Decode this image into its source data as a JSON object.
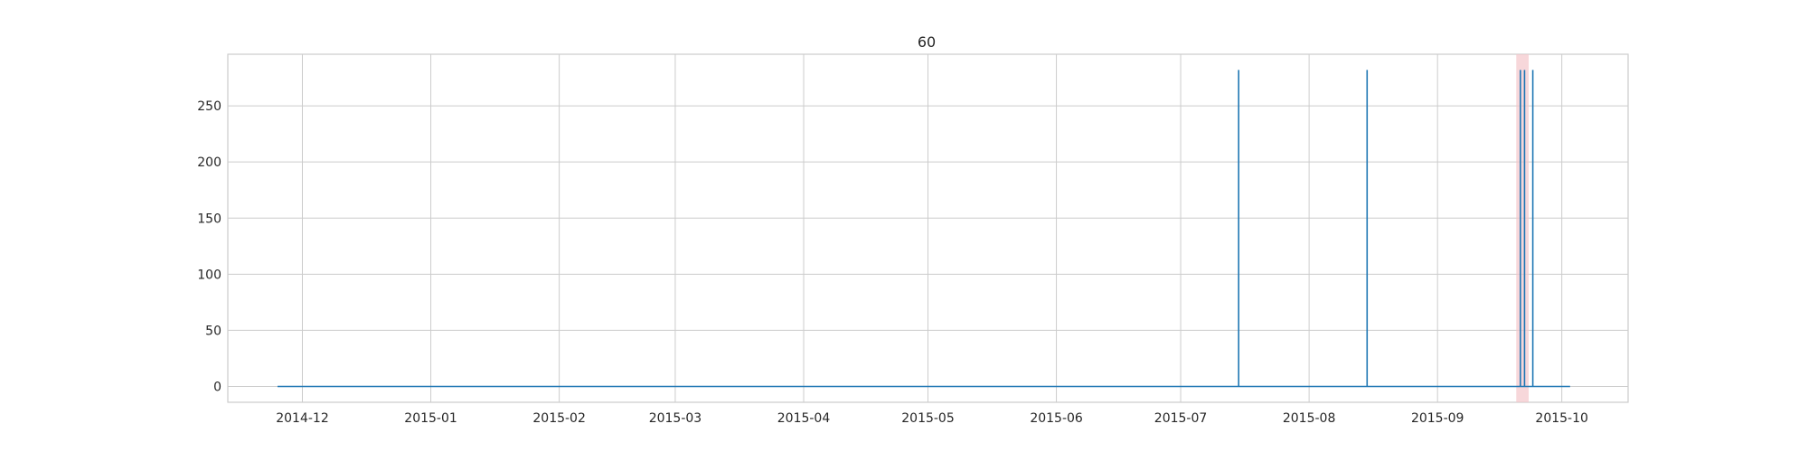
{
  "chart_data": {
    "type": "line",
    "title": "60",
    "xlabel": "",
    "ylabel": "",
    "x_axis": {
      "kind": "date",
      "range": [
        "2014-11-13",
        "2015-10-17"
      ],
      "ticks": [
        "2014-12-01",
        "2015-01-01",
        "2015-02-01",
        "2015-03-01",
        "2015-04-01",
        "2015-05-01",
        "2015-06-01",
        "2015-07-01",
        "2015-08-01",
        "2015-09-01",
        "2015-10-01"
      ],
      "tick_labels": [
        "2014-12",
        "2015-01",
        "2015-02",
        "2015-03",
        "2015-04",
        "2015-05",
        "2015-06",
        "2015-07",
        "2015-08",
        "2015-09",
        "2015-10"
      ]
    },
    "y_axis": {
      "range": [
        -14.1,
        296
      ],
      "ticks": [
        0,
        50,
        100,
        150,
        200,
        250
      ],
      "tick_labels": [
        "0",
        "50",
        "100",
        "150",
        "200",
        "250"
      ]
    },
    "grid": true,
    "series": [
      {
        "color": "#1f77b4",
        "x": [
          "2014-11-25",
          "2015-07-15",
          "2015-07-15",
          "2015-07-15",
          "2015-08-15",
          "2015-08-15",
          "2015-08-15",
          "2015-09-21",
          "2015-09-21",
          "2015-09-21",
          "2015-09-22",
          "2015-09-22",
          "2015-09-22",
          "2015-09-24",
          "2015-09-24",
          "2015-09-24",
          "2015-10-03"
        ],
        "y": [
          0,
          0,
          282,
          0,
          0,
          282,
          0,
          0,
          282,
          0,
          0,
          282,
          0,
          0,
          282,
          0,
          0
        ]
      }
    ],
    "highlight_spans": [
      {
        "start": "2015-09-20",
        "end": "2015-09-23",
        "color": "#f4c6cb"
      }
    ]
  }
}
